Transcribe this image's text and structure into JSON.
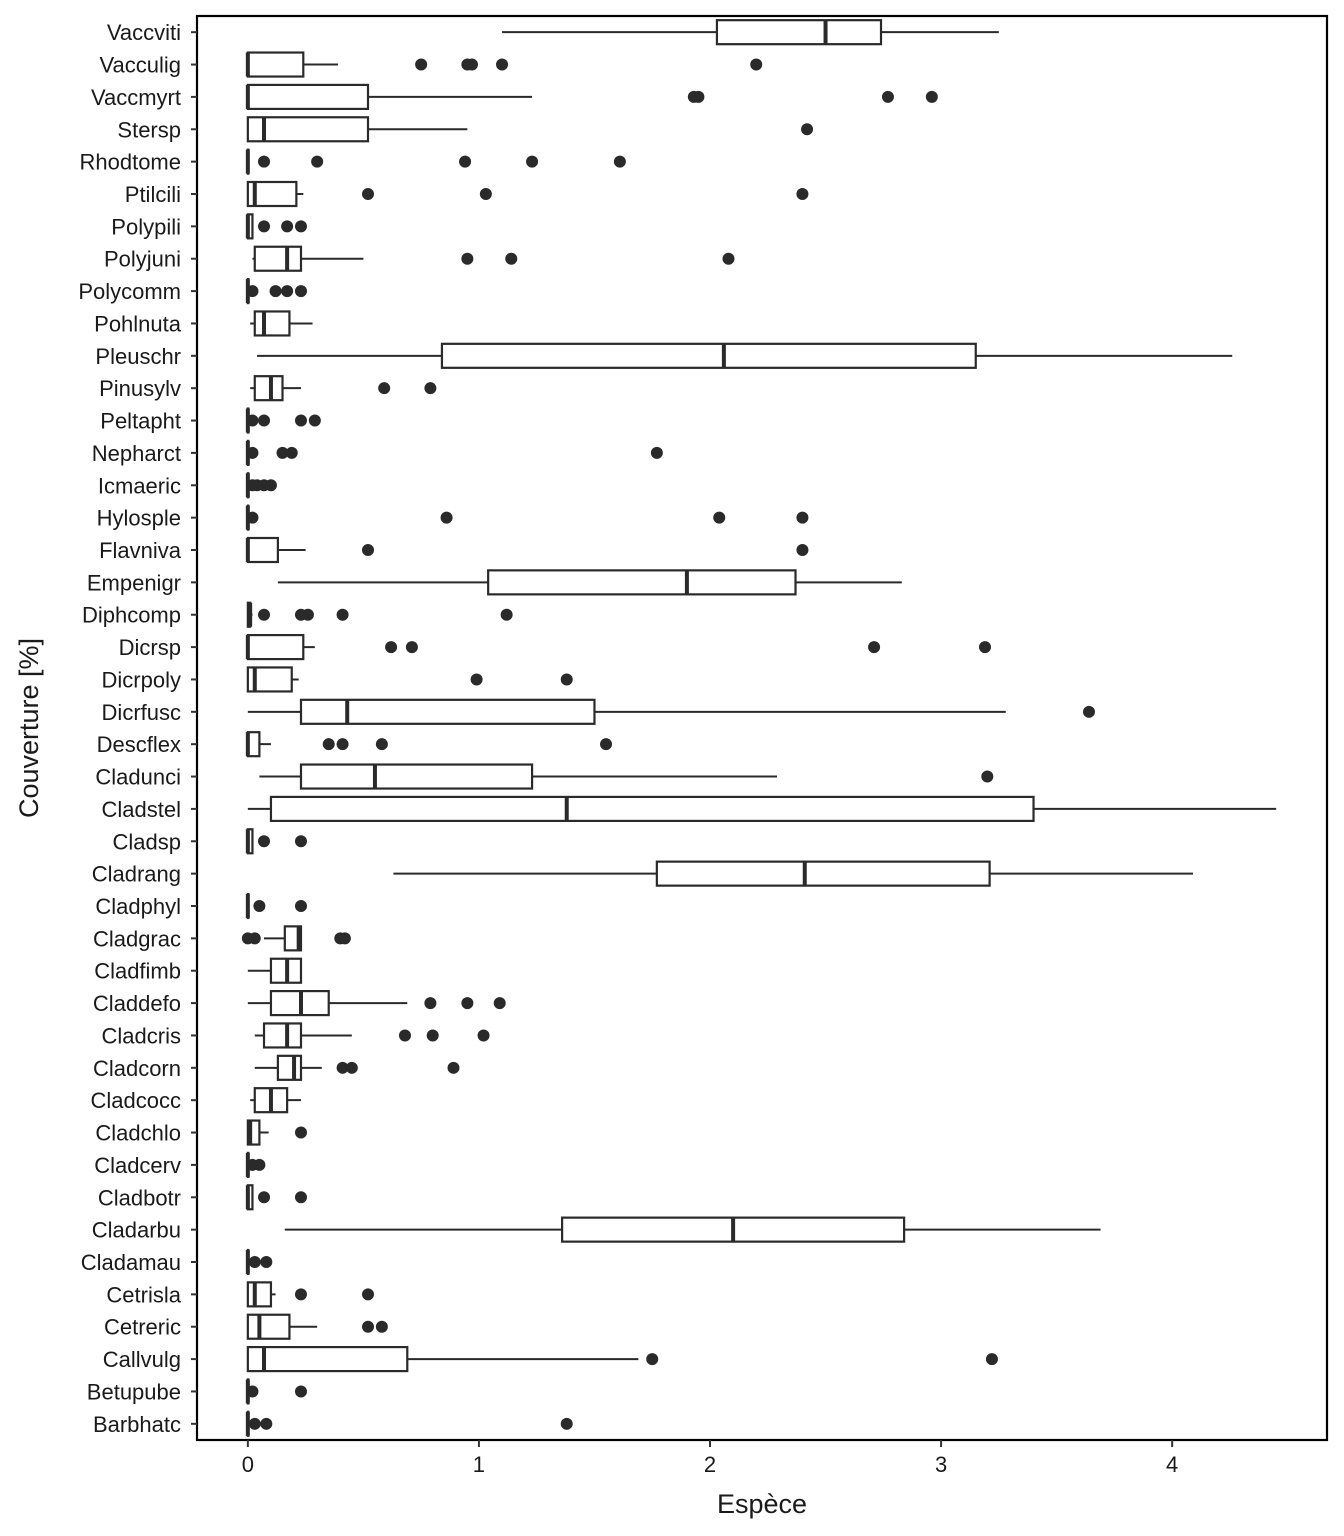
{
  "chart_data": {
    "type": "boxplot",
    "orientation": "horizontal",
    "title": "",
    "xlabel": "Espèce",
    "ylabel": "Couverture [%]",
    "xlim": [
      -0.22,
      4.67
    ],
    "x_ticks": [
      0,
      1,
      2,
      3,
      4
    ],
    "x_tick_labels": [
      "0",
      "1",
      "2",
      "3",
      "4"
    ],
    "grid": false,
    "legend": "none",
    "colors": {
      "box_stroke": "#2a2a2a",
      "box_fill": "#ffffff",
      "outlier": "#2a2a2a",
      "frame": "#000000"
    },
    "categories": [
      "Vaccviti",
      "Vacculig",
      "Vaccmyrt",
      "Stersp",
      "Rhodtome",
      "Ptilcili",
      "Polypili",
      "Polyjuni",
      "Polycomm",
      "Pohlnuta",
      "Pleuschr",
      "Pinusylv",
      "Peltapht",
      "Nepharct",
      "Icmaeric",
      "Hylosple",
      "Flavniva",
      "Empenigr",
      "Diphcomp",
      "Dicrsp",
      "Dicrpoly",
      "Dicrfusc",
      "Descflex",
      "Cladunci",
      "Cladstel",
      "Cladsp",
      "Cladrang",
      "Cladphyl",
      "Cladgrac",
      "Cladfimb",
      "Claddefo",
      "Cladcris",
      "Cladcorn",
      "Cladcocc",
      "Cladchlo",
      "Cladcerv",
      "Cladbotr",
      "Cladarbu",
      "Cladamau",
      "Cetrisla",
      "Cetreric",
      "Callvulg",
      "Betupube",
      "Barbhatc"
    ],
    "boxes": [
      {
        "min": 1.1,
        "q1": 2.03,
        "median": 2.5,
        "q3": 2.74,
        "max": 3.25,
        "outliers": []
      },
      {
        "min": 0.0,
        "q1": 0.0,
        "median": 0.0,
        "q3": 0.24,
        "max": 0.39,
        "outliers": [
          0.75,
          0.95,
          0.97,
          1.1,
          2.2
        ]
      },
      {
        "min": 0.0,
        "q1": 0.0,
        "median": 0.0,
        "q3": 0.52,
        "max": 1.23,
        "outliers": [
          1.93,
          1.95,
          2.77,
          2.96
        ]
      },
      {
        "min": 0.0,
        "q1": 0.0,
        "median": 0.07,
        "q3": 0.52,
        "max": 0.95,
        "outliers": [
          2.42
        ]
      },
      {
        "min": 0.0,
        "q1": 0.0,
        "median": 0.0,
        "q3": 0.0,
        "max": 0.0,
        "outliers": [
          0.07,
          0.3,
          0.94,
          1.23,
          1.61
        ]
      },
      {
        "min": 0.0,
        "q1": 0.0,
        "median": 0.03,
        "q3": 0.21,
        "max": 0.24,
        "outliers": [
          0.52,
          1.03,
          2.4
        ]
      },
      {
        "min": 0.0,
        "q1": 0.0,
        "median": 0.0,
        "q3": 0.02,
        "max": 0.02,
        "outliers": [
          0.07,
          0.17,
          0.23
        ]
      },
      {
        "min": 0.02,
        "q1": 0.03,
        "median": 0.17,
        "q3": 0.23,
        "max": 0.5,
        "outliers": [
          0.95,
          1.14,
          2.08
        ]
      },
      {
        "min": 0.0,
        "q1": 0.0,
        "median": 0.0,
        "q3": 0.0,
        "max": 0.0,
        "outliers": [
          0.02,
          0.12,
          0.17,
          0.23
        ]
      },
      {
        "min": 0.01,
        "q1": 0.03,
        "median": 0.07,
        "q3": 0.18,
        "max": 0.28,
        "outliers": []
      },
      {
        "min": 0.04,
        "q1": 0.84,
        "median": 2.06,
        "q3": 3.15,
        "max": 4.26,
        "outliers": []
      },
      {
        "min": 0.01,
        "q1": 0.03,
        "median": 0.1,
        "q3": 0.15,
        "max": 0.23,
        "outliers": [
          0.59,
          0.79
        ]
      },
      {
        "min": 0.0,
        "q1": 0.0,
        "median": 0.0,
        "q3": 0.0,
        "max": 0.0,
        "outliers": [
          0.02,
          0.07,
          0.23,
          0.29
        ]
      },
      {
        "min": 0.0,
        "q1": 0.0,
        "median": 0.0,
        "q3": 0.0,
        "max": 0.0,
        "outliers": [
          0.02,
          0.15,
          0.19,
          1.77
        ]
      },
      {
        "min": 0.0,
        "q1": 0.0,
        "median": 0.0,
        "q3": 0.0,
        "max": 0.0,
        "outliers": [
          0.02,
          0.04,
          0.07,
          0.1
        ]
      },
      {
        "min": 0.0,
        "q1": 0.0,
        "median": 0.0,
        "q3": 0.0,
        "max": 0.0,
        "outliers": [
          0.02,
          0.86,
          2.04,
          2.4
        ]
      },
      {
        "min": 0.0,
        "q1": 0.0,
        "median": 0.0,
        "q3": 0.13,
        "max": 0.25,
        "outliers": [
          0.52,
          2.4
        ]
      },
      {
        "min": 0.13,
        "q1": 1.04,
        "median": 1.9,
        "q3": 2.37,
        "max": 2.83,
        "outliers": []
      },
      {
        "min": 0.0,
        "q1": 0.0,
        "median": 0.01,
        "q3": 0.01,
        "max": 0.02,
        "outliers": [
          0.07,
          0.23,
          0.26,
          0.41,
          1.12
        ]
      },
      {
        "min": 0.0,
        "q1": 0.0,
        "median": 0.0,
        "q3": 0.24,
        "max": 0.29,
        "outliers": [
          0.62,
          0.71,
          2.71,
          3.19
        ]
      },
      {
        "min": 0.0,
        "q1": 0.0,
        "median": 0.03,
        "q3": 0.19,
        "max": 0.22,
        "outliers": [
          0.99,
          1.38
        ]
      },
      {
        "min": 0.0,
        "q1": 0.23,
        "median": 0.43,
        "q3": 1.5,
        "max": 3.28,
        "outliers": [
          3.64
        ]
      },
      {
        "min": 0.0,
        "q1": 0.0,
        "median": 0.0,
        "q3": 0.05,
        "max": 0.1,
        "outliers": [
          0.35,
          0.41,
          0.58,
          1.55
        ]
      },
      {
        "min": 0.05,
        "q1": 0.23,
        "median": 0.55,
        "q3": 1.23,
        "max": 2.29,
        "outliers": [
          3.2
        ]
      },
      {
        "min": 0.0,
        "q1": 0.1,
        "median": 1.38,
        "q3": 3.4,
        "max": 4.45,
        "outliers": []
      },
      {
        "min": 0.0,
        "q1": 0.0,
        "median": 0.0,
        "q3": 0.02,
        "max": 0.02,
        "outliers": [
          0.07,
          0.23
        ]
      },
      {
        "min": 0.63,
        "q1": 1.77,
        "median": 2.41,
        "q3": 3.21,
        "max": 4.09,
        "outliers": []
      },
      {
        "min": 0.0,
        "q1": 0.0,
        "median": 0.0,
        "q3": 0.0,
        "max": 0.0,
        "outliers": [
          0.05,
          0.23
        ]
      },
      {
        "min": 0.07,
        "q1": 0.16,
        "median": 0.22,
        "q3": 0.23,
        "max": 0.23,
        "outliers": [
          0.0,
          0.03,
          0.4,
          0.42
        ]
      },
      {
        "min": 0.0,
        "q1": 0.1,
        "median": 0.17,
        "q3": 0.23,
        "max": 0.23,
        "outliers": []
      },
      {
        "min": 0.0,
        "q1": 0.1,
        "median": 0.23,
        "q3": 0.35,
        "max": 0.69,
        "outliers": [
          0.79,
          0.95,
          1.09
        ]
      },
      {
        "min": 0.03,
        "q1": 0.07,
        "median": 0.17,
        "q3": 0.23,
        "max": 0.45,
        "outliers": [
          0.68,
          0.8,
          1.02
        ]
      },
      {
        "min": 0.03,
        "q1": 0.13,
        "median": 0.2,
        "q3": 0.23,
        "max": 0.32,
        "outliers": [
          0.41,
          0.45,
          0.89
        ]
      },
      {
        "min": 0.01,
        "q1": 0.03,
        "median": 0.1,
        "q3": 0.17,
        "max": 0.23,
        "outliers": []
      },
      {
        "min": 0.0,
        "q1": 0.0,
        "median": 0.01,
        "q3": 0.05,
        "max": 0.09,
        "outliers": [
          0.23
        ]
      },
      {
        "min": 0.0,
        "q1": 0.0,
        "median": 0.0,
        "q3": 0.0,
        "max": 0.0,
        "outliers": [
          0.02,
          0.05
        ]
      },
      {
        "min": 0.0,
        "q1": 0.0,
        "median": 0.0,
        "q3": 0.02,
        "max": 0.02,
        "outliers": [
          0.07,
          0.23
        ]
      },
      {
        "min": 0.16,
        "q1": 1.36,
        "median": 2.1,
        "q3": 2.84,
        "max": 3.69,
        "outliers": []
      },
      {
        "min": 0.0,
        "q1": 0.0,
        "median": 0.0,
        "q3": 0.0,
        "max": 0.0,
        "outliers": [
          0.03,
          0.08
        ]
      },
      {
        "min": 0.0,
        "q1": 0.0,
        "median": 0.03,
        "q3": 0.1,
        "max": 0.12,
        "outliers": [
          0.23,
          0.52
        ]
      },
      {
        "min": 0.0,
        "q1": 0.0,
        "median": 0.05,
        "q3": 0.18,
        "max": 0.3,
        "outliers": [
          0.52,
          0.58
        ]
      },
      {
        "min": 0.0,
        "q1": 0.0,
        "median": 0.07,
        "q3": 0.69,
        "max": 1.69,
        "outliers": [
          1.75,
          3.22
        ]
      },
      {
        "min": 0.0,
        "q1": 0.0,
        "median": 0.0,
        "q3": 0.0,
        "max": 0.0,
        "outliers": [
          0.02,
          0.23
        ]
      },
      {
        "min": 0.0,
        "q1": 0.0,
        "median": 0.0,
        "q3": 0.0,
        "max": 0.0,
        "outliers": [
          0.03,
          0.08,
          1.38
        ]
      }
    ]
  }
}
